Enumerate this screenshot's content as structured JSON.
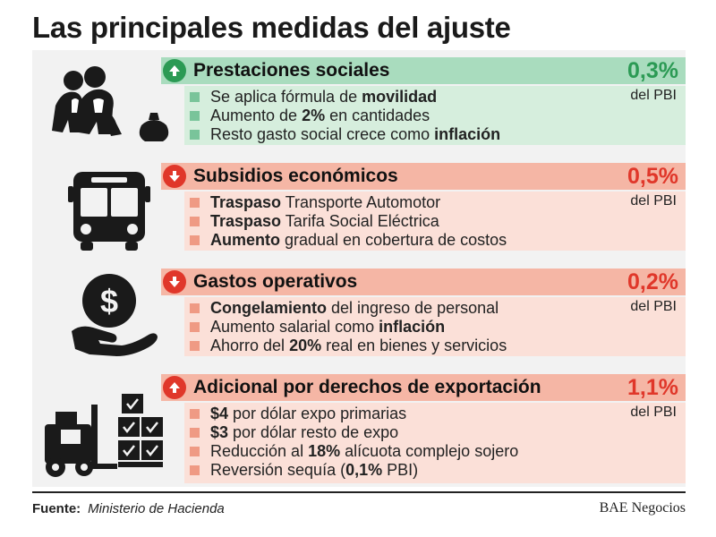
{
  "title": "Las principales medidas del ajuste",
  "sections": [
    {
      "title": "Prestaciones sociales",
      "pct": "0,3%",
      "pbi": "del PBI",
      "icon": "people-icon",
      "color": "green",
      "direction": "up",
      "bullets": [
        [
          {
            "t": "Se aplica fórmula de ",
            "b": false
          },
          {
            "t": "movilidad",
            "b": true
          }
        ],
        [
          {
            "t": "Aumento de ",
            "b": false
          },
          {
            "t": "2%",
            "b": true
          },
          {
            "t": " en cantidades",
            "b": false
          }
        ],
        [
          {
            "t": "Resto gasto social crece como ",
            "b": false
          },
          {
            "t": "inflación",
            "b": true
          }
        ]
      ]
    },
    {
      "title": "Subsidios económicos",
      "pct": "0,5%",
      "pbi": "del PBI",
      "icon": "bus-icon",
      "color": "red",
      "direction": "down",
      "bullets": [
        [
          {
            "t": "Traspaso",
            "b": true
          },
          {
            "t": " Transporte Automotor",
            "b": false
          }
        ],
        [
          {
            "t": "Traspaso",
            "b": true
          },
          {
            "t": " Tarifa Social Eléctrica",
            "b": false
          }
        ],
        [
          {
            "t": "Aumento",
            "b": true
          },
          {
            "t": " gradual en cobertura de costos",
            "b": false
          }
        ]
      ]
    },
    {
      "title": "Gastos operativos",
      "pct": "0,2%",
      "pbi": "del PBI",
      "icon": "money-hand-icon",
      "color": "red",
      "direction": "down",
      "bullets": [
        [
          {
            "t": "Congelamiento",
            "b": true
          },
          {
            "t": " del ingreso de personal",
            "b": false
          }
        ],
        [
          {
            "t": "Aumento salarial como ",
            "b": false
          },
          {
            "t": "inflación",
            "b": true
          }
        ],
        [
          {
            "t": "Ahorro del ",
            "b": false
          },
          {
            "t": "20%",
            "b": true
          },
          {
            "t": " real en bienes y servicios",
            "b": false
          }
        ]
      ]
    },
    {
      "title": "Adicional por derechos de exportación",
      "pct": "1,1%",
      "pbi": "del PBI",
      "icon": "forklift-icon",
      "color": "red",
      "direction": "up",
      "bullets": [
        [
          {
            "t": "$4",
            "b": true
          },
          {
            "t": " por dólar expo primarias",
            "b": false
          }
        ],
        [
          {
            "t": "$3",
            "b": true
          },
          {
            "t": " por dólar resto de expo",
            "b": false
          }
        ],
        [
          {
            "t": "Reducción al ",
            "b": false
          },
          {
            "t": "18%",
            "b": true
          },
          {
            "t": " alícuota complejo sojero",
            "b": false
          }
        ],
        [
          {
            "t": "Reversión sequía (",
            "b": false
          },
          {
            "t": "0,1%",
            "b": true
          },
          {
            "t": " PBI)",
            "b": false
          }
        ]
      ]
    }
  ],
  "footer": {
    "source_label": "Fuente:",
    "source_value": "Ministerio de Hacienda",
    "brand": "BAE Negocios"
  },
  "colors": {
    "green_accent": "#2b9a54",
    "red_accent": "#e0372a"
  }
}
